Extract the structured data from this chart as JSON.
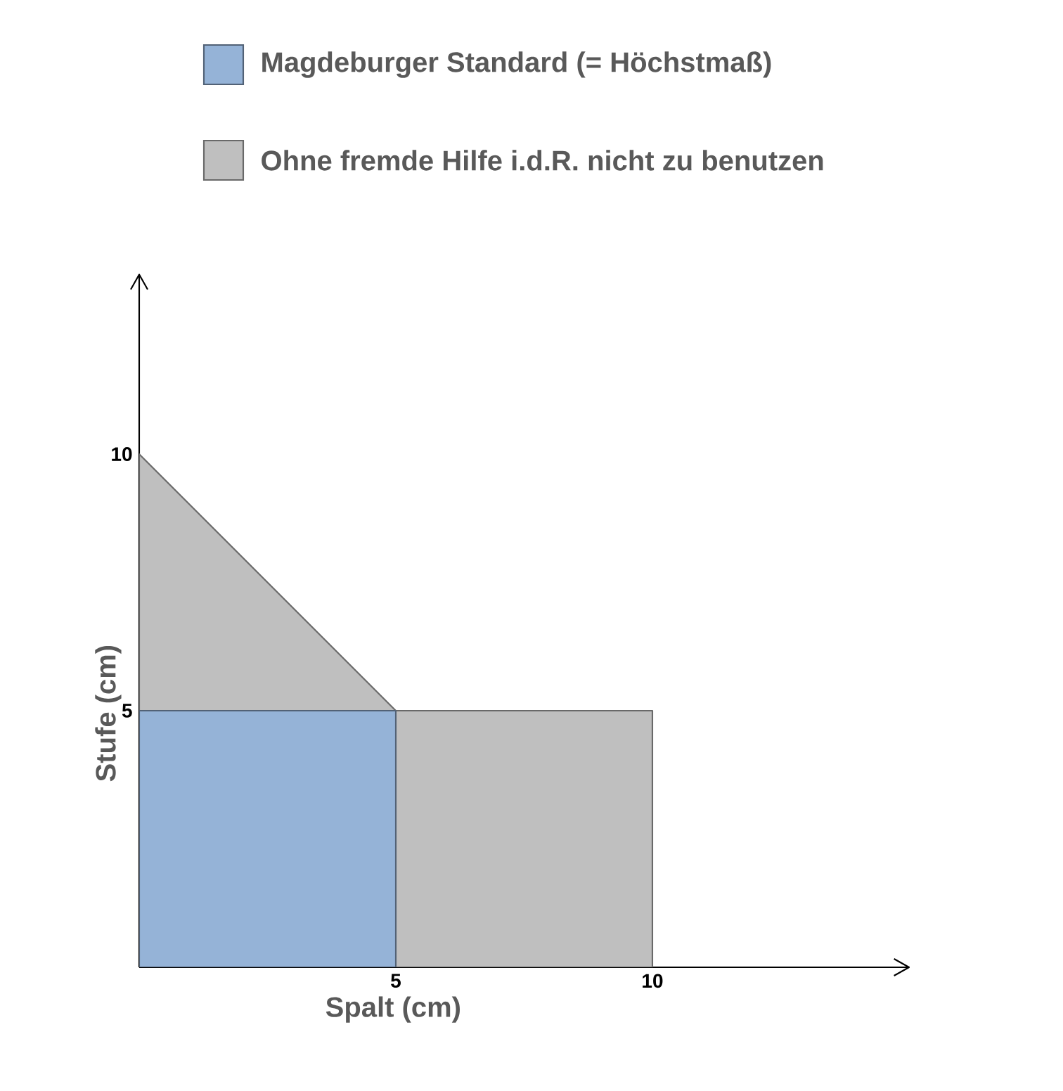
{
  "chart_data": {
    "type": "area",
    "xlabel": "Spalt (cm)",
    "ylabel": "Stufe (cm)",
    "series": [
      {
        "name": "Magdeburger Standard (= Höchstmaß)",
        "color": "#95b3d7",
        "x": [
          0,
          5,
          5
        ],
        "values": [
          5,
          5,
          0
        ]
      },
      {
        "name": "Ohne fremde Hilfe i.d.R. nicht zu benutzen",
        "color": "#bfbfbf",
        "x": [
          0,
          5,
          10,
          10
        ],
        "values": [
          10,
          5,
          5,
          0
        ]
      }
    ],
    "xlim": [
      0,
      15
    ],
    "ylim": [
      0,
      13.5
    ],
    "xticks": [
      5,
      10
    ],
    "yticks": [
      5,
      10
    ],
    "legend": "top"
  }
}
